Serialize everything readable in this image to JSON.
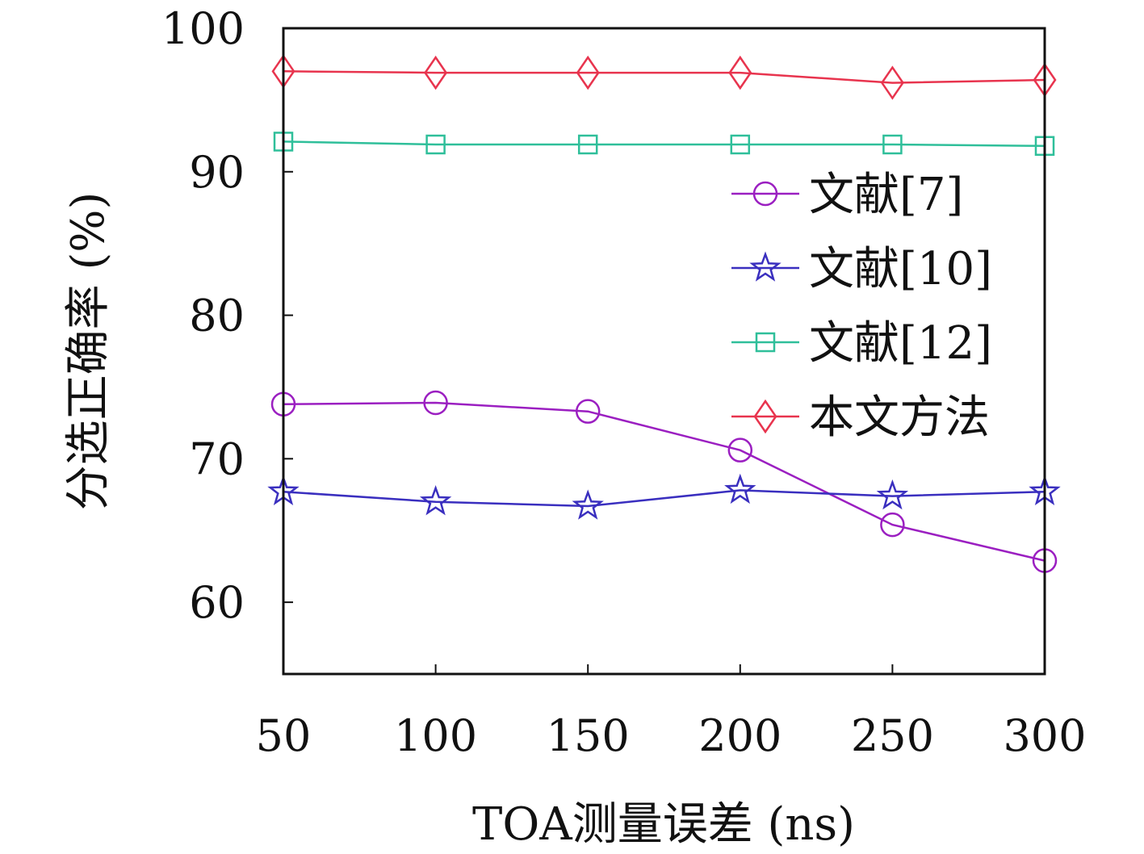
{
  "chart_data": {
    "type": "line",
    "xlabel": "TOA测量误差 (ns)",
    "ylabel": "分选正确率 (%)",
    "x": [
      50,
      100,
      150,
      200,
      250,
      300
    ],
    "xlim": [
      50,
      300
    ],
    "ylim": [
      55,
      100
    ],
    "yticks": [
      60,
      70,
      80,
      90,
      100
    ],
    "grid": false,
    "legend_position": "right",
    "series": [
      {
        "name": "文献[7]",
        "marker": "circle",
        "color": "#9b1fc1",
        "values": [
          73.8,
          73.9,
          73.3,
          70.6,
          65.4,
          62.9
        ]
      },
      {
        "name": "文献[10]",
        "marker": "star",
        "color": "#3a2fbf",
        "values": [
          67.7,
          67.0,
          66.7,
          67.8,
          67.4,
          67.7
        ]
      },
      {
        "name": "文献[12]",
        "marker": "square",
        "color": "#2fbf9a",
        "values": [
          92.1,
          91.9,
          91.9,
          91.9,
          91.9,
          91.8
        ]
      },
      {
        "name": "本文方法",
        "marker": "diamond",
        "color": "#e8344e",
        "values": [
          97.0,
          96.9,
          96.9,
          96.9,
          96.2,
          96.4
        ]
      }
    ]
  }
}
